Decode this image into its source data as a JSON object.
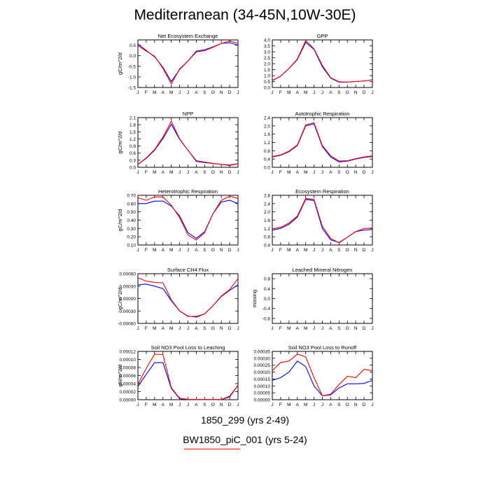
{
  "title": "Mediterranean (34-45N,10W-30E)",
  "colors": {
    "series0": "#0000ff",
    "series1": "#ff0000"
  },
  "legend": [
    {
      "label": "1850_299 (yrs 2-49)",
      "color": "#0000ff"
    },
    {
      "label": "BW1850_piC_001 (yrs 5-24)",
      "color": "#ff0000"
    }
  ],
  "chart_data": [
    {
      "type": "line",
      "title": "Net Ecosystem Exchange",
      "ylabel": "gC/m^2/d",
      "categories": [
        "J",
        "F",
        "M",
        "A",
        "M",
        "J",
        "J",
        "A",
        "S",
        "O",
        "N",
        "D",
        "J"
      ],
      "yticks": [
        "-1.5",
        "-1.0",
        "-0.5",
        "0.0",
        "0.5"
      ],
      "ylim": [
        -1.5,
        0.75
      ],
      "series": [
        {
          "values": [
            0.55,
            0.25,
            -0.05,
            -0.55,
            -1.22,
            -0.65,
            -0.25,
            0.22,
            0.28,
            0.42,
            0.58,
            0.62,
            0.5
          ]
        },
        {
          "values": [
            0.48,
            0.22,
            -0.02,
            -0.6,
            -1.33,
            -0.62,
            -0.25,
            0.18,
            0.24,
            0.4,
            0.58,
            0.7,
            0.58
          ]
        }
      ]
    },
    {
      "type": "line",
      "title": "GPP",
      "ylabel": "",
      "categories": [
        "J",
        "F",
        "M",
        "A",
        "M",
        "J",
        "J",
        "A",
        "S",
        "O",
        "N",
        "D",
        "J"
      ],
      "yticks": [
        "0.0",
        "0.5",
        "1.0",
        "1.5",
        "2.0",
        "2.5",
        "3.0",
        "3.5",
        "4.0"
      ],
      "ylim": [
        0,
        4.0
      ],
      "series": [
        {
          "values": [
            0.58,
            0.95,
            1.6,
            2.35,
            3.8,
            3.2,
            1.75,
            0.78,
            0.45,
            0.45,
            0.5,
            0.55,
            0.65
          ]
        },
        {
          "values": [
            0.6,
            0.95,
            1.6,
            2.4,
            3.95,
            3.25,
            1.85,
            0.82,
            0.48,
            0.45,
            0.5,
            0.55,
            0.65
          ]
        }
      ]
    },
    {
      "type": "line",
      "title": "NPP",
      "ylabel": "gC/m^2/d",
      "categories": [
        "J",
        "F",
        "M",
        "A",
        "M",
        "J",
        "J",
        "A",
        "S",
        "O",
        "N",
        "D",
        "J"
      ],
      "yticks": [
        "0.0",
        "0.3",
        "0.6",
        "0.9",
        "1.2",
        "1.5",
        "1.8",
        "2.1"
      ],
      "ylim": [
        0,
        2.1
      ],
      "series": [
        {
          "values": [
            0.12,
            0.38,
            0.72,
            1.22,
            1.82,
            1.18,
            0.72,
            0.25,
            0.2,
            0.16,
            0.12,
            0.08,
            0.15
          ]
        },
        {
          "values": [
            0.12,
            0.4,
            0.75,
            1.28,
            1.95,
            1.2,
            0.72,
            0.28,
            0.22,
            0.17,
            0.12,
            0.1,
            0.15
          ]
        }
      ]
    },
    {
      "type": "line",
      "title": "Autotrophic Respiration",
      "ylabel": "",
      "categories": [
        "J",
        "F",
        "M",
        "A",
        "M",
        "J",
        "J",
        "A",
        "S",
        "O",
        "N",
        "D",
        "J"
      ],
      "yticks": [
        "0.0",
        "0.4",
        "0.8",
        "1.2",
        "1.6",
        "2.0",
        "2.4"
      ],
      "ylim": [
        0,
        2.4
      ],
      "series": [
        {
          "values": [
            0.5,
            0.58,
            0.75,
            1.05,
            2.0,
            2.1,
            1.0,
            0.5,
            0.26,
            0.3,
            0.4,
            0.48,
            0.52
          ]
        },
        {
          "values": [
            0.52,
            0.6,
            0.78,
            1.08,
            2.05,
            2.15,
            1.05,
            0.55,
            0.3,
            0.32,
            0.42,
            0.5,
            0.55
          ]
        }
      ]
    },
    {
      "type": "line",
      "title": "Heterotrophic Respiration",
      "ylabel": "gC/m^2/d",
      "categories": [
        "J",
        "F",
        "M",
        "A",
        "M",
        "J",
        "J",
        "A",
        "S",
        "O",
        "N",
        "D",
        "J"
      ],
      "yticks": [
        "0.10",
        "0.20",
        "0.30",
        "0.40",
        "0.50",
        "0.60",
        "0.70"
      ],
      "ylim": [
        0.1,
        0.7
      ],
      "series": [
        {
          "values": [
            0.6,
            0.6,
            0.63,
            0.63,
            0.57,
            0.45,
            0.25,
            0.18,
            0.26,
            0.48,
            0.62,
            0.64,
            0.6
          ]
        },
        {
          "values": [
            0.67,
            0.64,
            0.68,
            0.68,
            0.58,
            0.43,
            0.22,
            0.16,
            0.25,
            0.48,
            0.64,
            0.69,
            0.66
          ]
        }
      ]
    },
    {
      "type": "line",
      "title": "Ecosystem Respiration",
      "ylabel": "",
      "categories": [
        "J",
        "F",
        "M",
        "A",
        "M",
        "J",
        "J",
        "A",
        "S",
        "O",
        "N",
        "D",
        "J"
      ],
      "yticks": [
        "0.4",
        "0.8",
        "1.2",
        "1.6",
        "2.0",
        "2.4",
        "2.8"
      ],
      "ylim": [
        0.4,
        2.8
      ],
      "series": [
        {
          "values": [
            1.12,
            1.2,
            1.4,
            1.75,
            2.6,
            2.55,
            1.2,
            0.65,
            0.52,
            0.78,
            1.05,
            1.12,
            1.15
          ]
        },
        {
          "values": [
            1.18,
            1.26,
            1.46,
            1.8,
            2.65,
            2.6,
            1.3,
            0.72,
            0.5,
            0.78,
            1.05,
            1.2,
            1.22
          ]
        }
      ]
    },
    {
      "type": "line",
      "title": "Surface CH4 Flux",
      "ylabel": "gC/m^2/d",
      "categories": [
        "J",
        "F",
        "M",
        "A",
        "M",
        "J",
        "J",
        "A",
        "S",
        "O",
        "N",
        "D",
        "J"
      ],
      "yticks": [
        "-0.00060",
        "-0.00030",
        "0.00000",
        "0.00030",
        "0.00060"
      ],
      "ylim": [
        -0.0006,
        0.0006
      ],
      "series": [
        {
          "values": [
            0.00033,
            0.00035,
            0.0003,
            0.00024,
            -5e-05,
            -0.0003,
            -0.00042,
            -0.00045,
            -0.00037,
            -0.00017,
            5e-05,
            0.0002,
            0.00033
          ]
        },
        {
          "values": [
            0.0005,
            0.00042,
            0.00039,
            0.00038,
            -3e-05,
            -0.0003,
            -0.00043,
            -0.00043,
            -0.00037,
            -0.00017,
            6e-05,
            0.00022,
            0.00048
          ]
        }
      ]
    },
    {
      "type": "line",
      "title": "Leached Mineral Nitrogen",
      "ylabel": "missing",
      "categories": [
        "J",
        "F",
        "M",
        "A",
        "M",
        "J",
        "J",
        "A",
        "S",
        "O",
        "N",
        "D",
        "J"
      ],
      "yticks": [
        "-0.8",
        "-0.4",
        "0.0",
        "0.4",
        "0.8"
      ],
      "ylim": [
        -1.0,
        1.0
      ],
      "series": []
    },
    {
      "type": "line",
      "title": "Soil NO3 Pool Loss to Leaching",
      "ylabel": "gN/m^2/d",
      "categories": [
        "J",
        "F",
        "M",
        "A",
        "M",
        "J",
        "J",
        "A",
        "S",
        "O",
        "N",
        "D",
        "J"
      ],
      "yticks": [
        "0.00000",
        "0.00002",
        "0.00004",
        "0.00006",
        "0.00008",
        "0.00010",
        "0.00012"
      ],
      "ylim": [
        0,
        0.00012
      ],
      "series": [
        {
          "values": [
            3.3e-05,
            6.3e-05,
            9.2e-05,
            9.2e-05,
            2.8e-05,
            2.5e-06,
            8e-07,
            4e-07,
            4e-07,
            4e-07,
            4e-07,
            7e-06,
            3.6e-05
          ]
        },
        {
          "values": [
            3.8e-05,
            7.8e-05,
            0.000113,
            0.000112,
            3e-05,
            3.5e-06,
            1e-06,
            5e-07,
            5e-07,
            5e-07,
            5e-07,
            9e-06,
            3.6e-05
          ]
        }
      ]
    },
    {
      "type": "line",
      "title": "Soil NO3 Pool Loss to Runoff",
      "ylabel": "",
      "categories": [
        "J",
        "F",
        "M",
        "A",
        "M",
        "J",
        "J",
        "A",
        "S",
        "O",
        "N",
        "D",
        "J"
      ],
      "yticks": [
        "0.00000",
        "0.00005",
        "0.00010",
        "0.00015",
        "0.00020",
        "0.00025",
        "0.00030",
        "0.00035"
      ],
      "ylim": [
        0,
        0.00035
      ],
      "series": [
        {
          "values": [
            0.00014,
            0.00016,
            0.0002,
            0.00028,
            0.00024,
            0.0001,
            2.8e-05,
            3.5e-05,
            8.5e-05,
            0.000115,
            0.000115,
            0.000118,
            0.00014
          ]
        },
        {
          "values": [
            0.00021,
            0.00027,
            0.00028,
            0.00033,
            0.00031,
            0.00016,
            2.8e-05,
            4e-05,
            0.00011,
            0.00017,
            0.00016,
            0.00022,
            0.00021
          ]
        }
      ]
    }
  ]
}
